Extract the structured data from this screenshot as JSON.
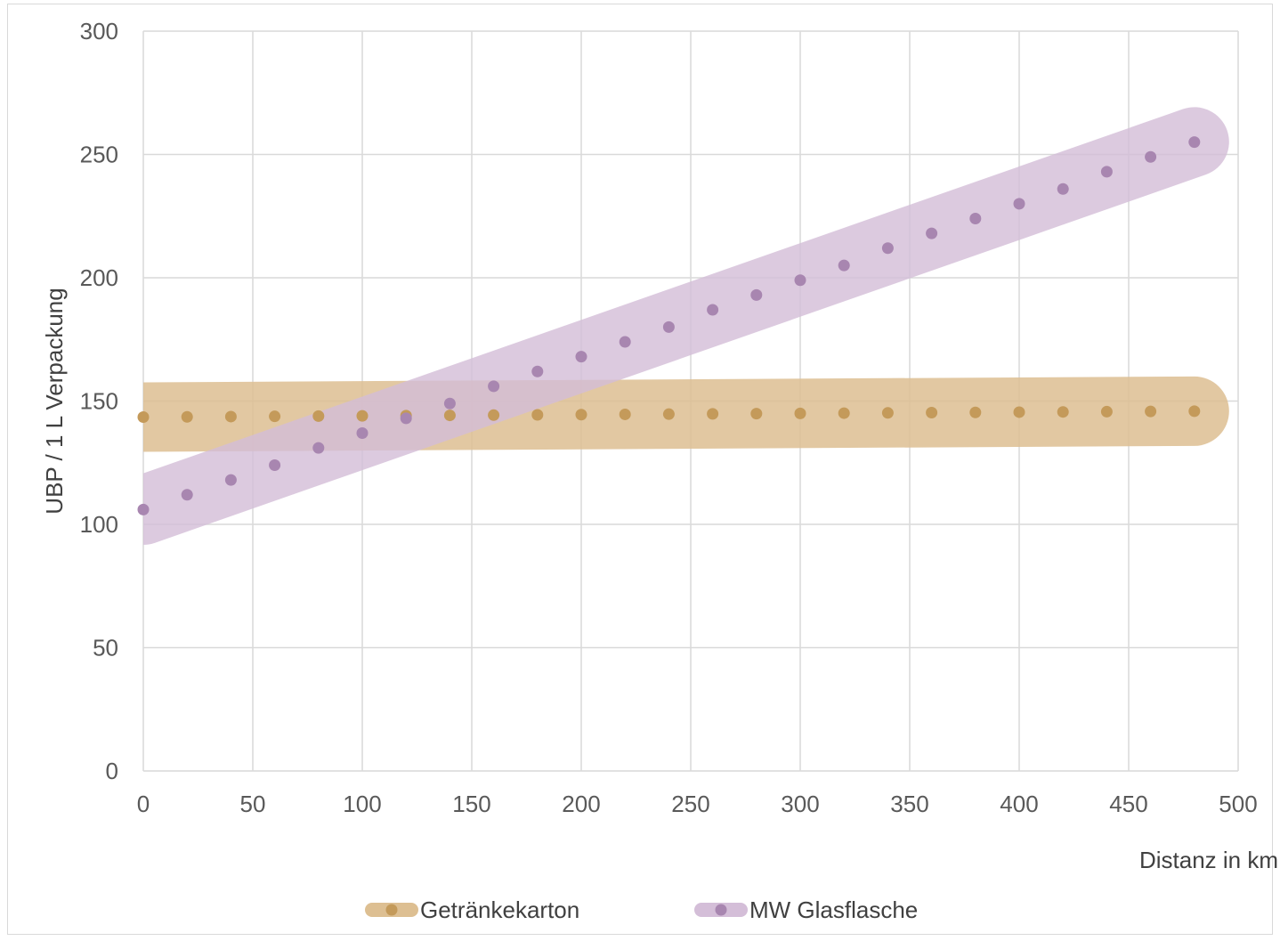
{
  "chart_data": {
    "type": "scatter",
    "title": "",
    "xlabel": "Distanz in km",
    "ylabel": "UBP / 1 L Verpackung",
    "xlim": [
      0,
      500
    ],
    "ylim": [
      0,
      300
    ],
    "x_ticks": [
      0,
      50,
      100,
      150,
      200,
      250,
      300,
      350,
      400,
      450,
      500
    ],
    "y_ticks": [
      0,
      50,
      100,
      150,
      200,
      250,
      300
    ],
    "grid": true,
    "legend_position": "bottom",
    "x": [
      0,
      20,
      40,
      60,
      80,
      100,
      120,
      140,
      160,
      180,
      200,
      220,
      240,
      260,
      280,
      300,
      320,
      340,
      360,
      380,
      400,
      420,
      440,
      460,
      480
    ],
    "series": [
      {
        "name": "Getränkekarton",
        "color": "#c49a5a",
        "band_color": "#ddbf92",
        "values": [
          143.5,
          143.6,
          143.7,
          143.8,
          143.9,
          144.0,
          144.1,
          144.2,
          144.3,
          144.4,
          144.5,
          144.6,
          144.7,
          144.8,
          144.9,
          145.0,
          145.1,
          145.2,
          145.3,
          145.4,
          145.5,
          145.6,
          145.7,
          145.8,
          145.9
        ]
      },
      {
        "name": "MW Glasflasche",
        "color": "#a886b0",
        "band_color": "#d4bed8",
        "values": [
          106,
          112,
          118,
          124,
          131,
          137,
          143,
          149,
          156,
          162,
          168,
          174,
          180,
          187,
          193,
          199,
          205,
          212,
          218,
          224,
          230,
          236,
          243,
          249,
          255
        ]
      }
    ]
  }
}
